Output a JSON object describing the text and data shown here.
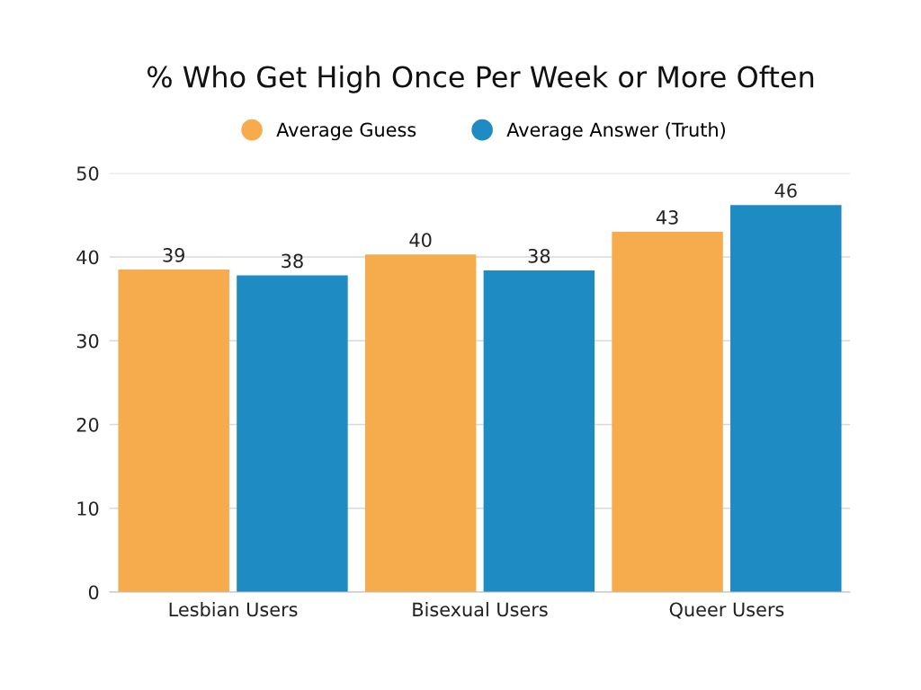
{
  "chart_data": {
    "type": "bar",
    "title": "% Who Get High Once Per Week or More Often",
    "categories": [
      "Lesbian Users",
      "Bisexual Users",
      "Queer Users"
    ],
    "series": [
      {
        "name": "Average Guess",
        "color": "#f6ac4d",
        "values": [
          38.5,
          40.3,
          43.0
        ],
        "value_labels": [
          "39",
          "40",
          "43"
        ]
      },
      {
        "name": "Average Answer (Truth)",
        "color": "#1f8bc3",
        "values": [
          37.8,
          38.4,
          46.2
        ],
        "value_labels": [
          "38",
          "38",
          "46"
        ]
      }
    ],
    "ylim": [
      0,
      50
    ],
    "yticks": [
      0,
      10,
      20,
      30,
      40,
      50
    ],
    "grid": "y",
    "legend": "top"
  }
}
